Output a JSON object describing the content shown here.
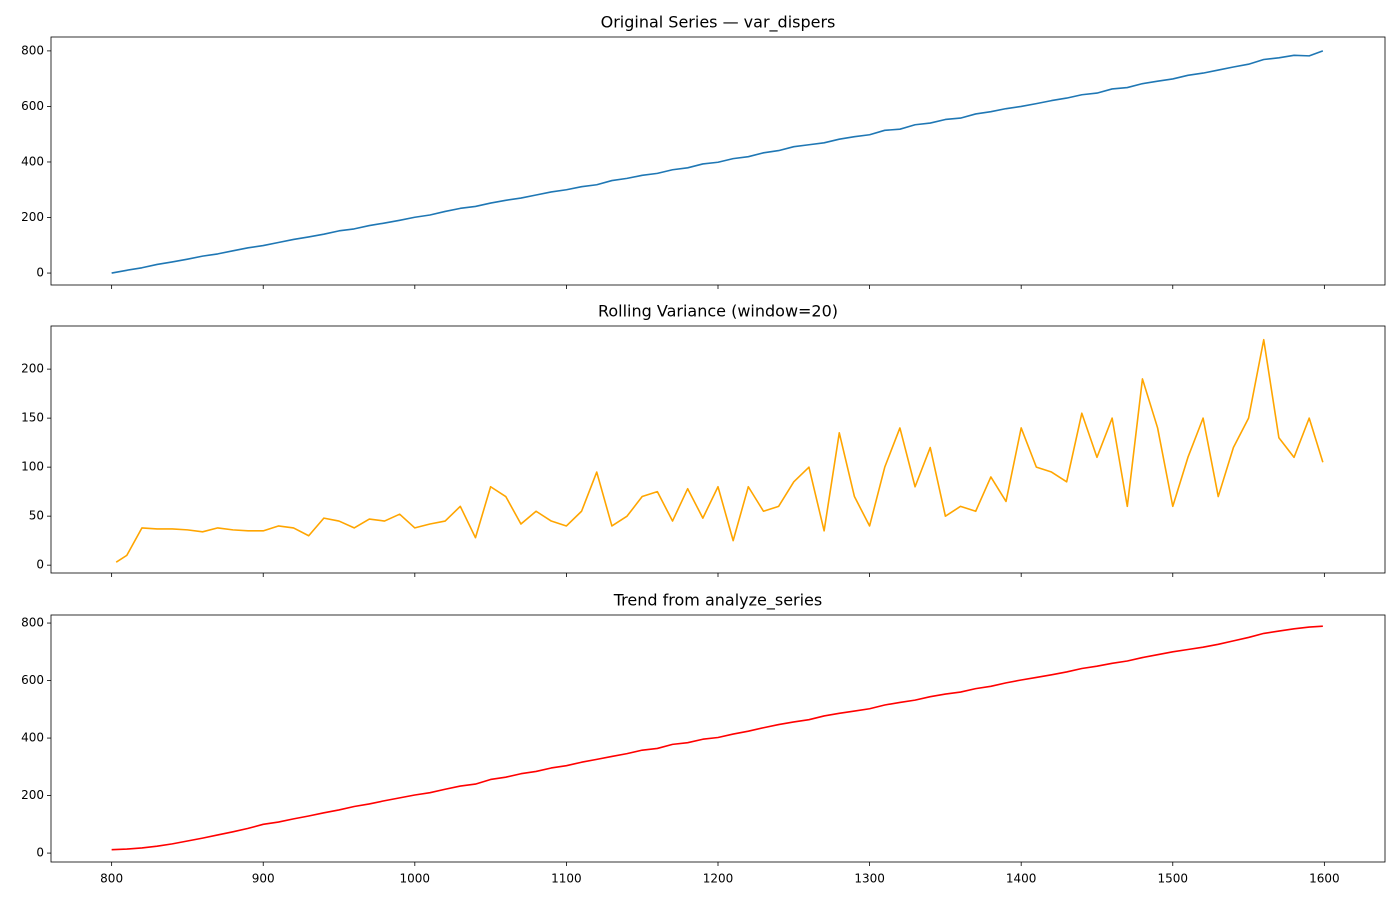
{
  "chart_data": [
    {
      "type": "line",
      "title": "Original Series — var_dispers",
      "color": "#1f77b4",
      "x": [
        800,
        810,
        820,
        830,
        840,
        850,
        860,
        870,
        880,
        890,
        900,
        910,
        920,
        930,
        940,
        950,
        960,
        970,
        980,
        990,
        1000,
        1010,
        1020,
        1030,
        1040,
        1050,
        1060,
        1070,
        1080,
        1090,
        1100,
        1110,
        1120,
        1130,
        1140,
        1150,
        1160,
        1170,
        1180,
        1190,
        1200,
        1210,
        1220,
        1230,
        1240,
        1250,
        1260,
        1270,
        1280,
        1290,
        1300,
        1310,
        1320,
        1330,
        1340,
        1350,
        1360,
        1370,
        1380,
        1390,
        1400,
        1410,
        1420,
        1430,
        1440,
        1450,
        1460,
        1470,
        1480,
        1490,
        1500,
        1510,
        1520,
        1530,
        1540,
        1550,
        1560,
        1570,
        1580,
        1590,
        1599
      ],
      "values": [
        0,
        10,
        19,
        31,
        40,
        50,
        61,
        69,
        80,
        91,
        99,
        110,
        121,
        130,
        140,
        152,
        159,
        171,
        180,
        190,
        201,
        209,
        222,
        233,
        240,
        252,
        262,
        270,
        281,
        292,
        300,
        311,
        318,
        333,
        341,
        352,
        359,
        372,
        379,
        393,
        399,
        412,
        419,
        433,
        441,
        455,
        462,
        469,
        482,
        491,
        498,
        514,
        518,
        534,
        540,
        553,
        558,
        573,
        581,
        592,
        600,
        610,
        621,
        630,
        642,
        648,
        663,
        668,
        682,
        691,
        699,
        712,
        720,
        731,
        742,
        752,
        769,
        775,
        784,
        782,
        800
      ],
      "xlim": [
        760,
        1640
      ],
      "xticks": [
        800,
        900,
        1000,
        1100,
        1200,
        1300,
        1400,
        1500,
        1600
      ],
      "xtick_labels": false,
      "ylim": [
        -43,
        850
      ],
      "yticks": [
        0,
        200,
        400,
        600,
        800
      ]
    },
    {
      "type": "line",
      "title": "Rolling Variance (window=20)",
      "color": "#ffa500",
      "x": [
        803,
        810,
        820,
        830,
        840,
        850,
        860,
        870,
        880,
        890,
        900,
        910,
        920,
        930,
        940,
        950,
        960,
        970,
        980,
        990,
        1000,
        1010,
        1020,
        1030,
        1040,
        1050,
        1060,
        1070,
        1080,
        1090,
        1100,
        1110,
        1120,
        1130,
        1140,
        1150,
        1160,
        1170,
        1180,
        1190,
        1200,
        1210,
        1220,
        1230,
        1240,
        1250,
        1260,
        1270,
        1280,
        1290,
        1300,
        1310,
        1320,
        1330,
        1340,
        1350,
        1360,
        1370,
        1380,
        1390,
        1400,
        1410,
        1420,
        1430,
        1440,
        1450,
        1460,
        1470,
        1480,
        1490,
        1500,
        1510,
        1520,
        1530,
        1540,
        1550,
        1560,
        1570,
        1580,
        1590,
        1599
      ],
      "values": [
        3,
        10,
        38,
        37,
        37,
        36,
        34,
        38,
        36,
        35,
        35,
        40,
        38,
        30,
        48,
        45,
        38,
        47,
        45,
        52,
        38,
        42,
        45,
        60,
        28,
        80,
        70,
        42,
        55,
        45,
        40,
        55,
        95,
        40,
        50,
        70,
        75,
        45,
        78,
        48,
        80,
        25,
        80,
        55,
        60,
        85,
        100,
        35,
        135,
        70,
        40,
        100,
        140,
        80,
        120,
        50,
        60,
        55,
        90,
        65,
        140,
        100,
        95,
        85,
        155,
        110,
        150,
        60,
        190,
        140,
        60,
        110,
        150,
        70,
        120,
        150,
        230,
        130,
        110,
        150,
        105
      ],
      "xlim": [
        760,
        1640
      ],
      "xticks": [
        800,
        900,
        1000,
        1100,
        1200,
        1300,
        1400,
        1500,
        1600
      ],
      "xtick_labels": false,
      "ylim": [
        -8,
        244
      ],
      "yticks": [
        0,
        50,
        100,
        150,
        200
      ]
    },
    {
      "type": "line",
      "title": "Trend from analyze_series",
      "color": "#ff0000",
      "x": [
        800,
        810,
        820,
        830,
        840,
        850,
        860,
        870,
        880,
        890,
        900,
        910,
        920,
        930,
        940,
        950,
        960,
        970,
        980,
        990,
        1000,
        1010,
        1020,
        1030,
        1040,
        1050,
        1060,
        1070,
        1080,
        1090,
        1100,
        1110,
        1120,
        1130,
        1140,
        1150,
        1160,
        1170,
        1180,
        1190,
        1200,
        1210,
        1220,
        1230,
        1240,
        1250,
        1260,
        1270,
        1280,
        1290,
        1300,
        1310,
        1320,
        1330,
        1340,
        1350,
        1360,
        1370,
        1380,
        1390,
        1400,
        1410,
        1420,
        1430,
        1440,
        1450,
        1460,
        1470,
        1480,
        1490,
        1500,
        1510,
        1520,
        1530,
        1540,
        1550,
        1560,
        1570,
        1580,
        1590,
        1599
      ],
      "values": [
        12,
        14,
        18,
        24,
        32,
        42,
        52,
        63,
        74,
        86,
        100,
        108,
        119,
        129,
        140,
        150,
        162,
        171,
        182,
        192,
        202,
        210,
        222,
        233,
        240,
        256,
        264,
        276,
        284,
        296,
        304,
        316,
        326,
        336,
        346,
        358,
        364,
        378,
        384,
        396,
        402,
        414,
        424,
        436,
        447,
        456,
        464,
        477,
        486,
        494,
        502,
        515,
        524,
        532,
        544,
        553,
        560,
        572,
        580,
        592,
        602,
        611,
        620,
        630,
        642,
        650,
        660,
        668,
        680,
        690,
        700,
        708,
        716,
        726,
        738,
        750,
        764,
        772,
        780,
        786,
        789
      ],
      "xlim": [
        760,
        1640
      ],
      "xticks": [
        800,
        900,
        1000,
        1100,
        1200,
        1300,
        1400,
        1500,
        1600
      ],
      "xtick_labels": true,
      "ylim": [
        -31,
        828
      ],
      "yticks": [
        0,
        200,
        400,
        600,
        800
      ]
    }
  ]
}
